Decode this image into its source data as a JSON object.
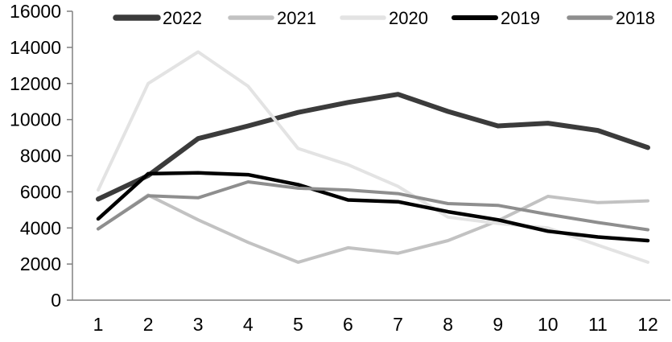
{
  "chart_data": {
    "type": "line",
    "title": "",
    "xlabel": "",
    "ylabel": "",
    "x": [
      1,
      2,
      3,
      4,
      5,
      6,
      7,
      8,
      9,
      10,
      11,
      12
    ],
    "xtick_labels": [
      "1",
      "2",
      "3",
      "4",
      "5",
      "6",
      "7",
      "8",
      "9",
      "10",
      "11",
      "12"
    ],
    "ylim": [
      0,
      16000
    ],
    "ytick_step": 2000,
    "yticks": [
      0,
      2000,
      4000,
      6000,
      8000,
      10000,
      12000,
      14000,
      16000
    ],
    "ytick_labels": [
      "0",
      "2000",
      "4000",
      "6000",
      "8000",
      "10000",
      "12000",
      "14000",
      "16000"
    ],
    "grid": false,
    "legend_position": "top",
    "axis_color": "#808080",
    "text_color": "#000000",
    "series": [
      {
        "name": "2022",
        "color": "#3b3b3b",
        "width": 6,
        "values": [
          5600,
          6900,
          8950,
          9650,
          10400,
          10950,
          11400,
          10450,
          9650,
          9800,
          9400,
          8450
        ]
      },
      {
        "name": "2021",
        "color": "#c2c2c2",
        "width": 4,
        "values": [
          3950,
          5820,
          4450,
          3200,
          2100,
          2900,
          2600,
          3300,
          4400,
          5750,
          5400,
          5500
        ]
      },
      {
        "name": "2020",
        "color": "#e3e3e3",
        "width": 4,
        "values": [
          6100,
          12000,
          13750,
          11850,
          8400,
          7500,
          6300,
          4600,
          4250,
          4000,
          3050,
          2100
        ]
      },
      {
        "name": "2019",
        "color": "#000000",
        "width": 4.5,
        "values": [
          4500,
          7000,
          7050,
          6950,
          6400,
          5550,
          5450,
          4900,
          4450,
          3820,
          3500,
          3300
        ]
      },
      {
        "name": "2018",
        "color": "#8e8e8e",
        "width": 4,
        "values": [
          3950,
          5780,
          5670,
          6550,
          6200,
          6100,
          5900,
          5350,
          5250,
          4750,
          4300,
          3900
        ]
      }
    ]
  }
}
